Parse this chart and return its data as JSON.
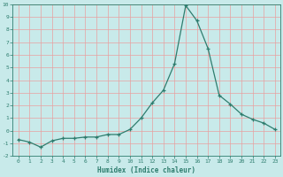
{
  "x": [
    0,
    1,
    2,
    3,
    4,
    5,
    6,
    7,
    8,
    9,
    10,
    11,
    12,
    13,
    14,
    15,
    16,
    17,
    18,
    19,
    20,
    21,
    22,
    23
  ],
  "y": [
    -0.7,
    -0.9,
    -1.3,
    -0.8,
    -0.6,
    -0.6,
    -0.5,
    -0.5,
    -0.3,
    -0.3,
    0.1,
    1.0,
    2.2,
    3.2,
    5.3,
    9.9,
    8.7,
    6.5,
    2.8,
    2.1,
    1.3,
    0.9,
    0.6,
    0.1
  ],
  "xlabel": "Humidex (Indice chaleur)",
  "ylim": [
    -2,
    10
  ],
  "xlim": [
    -0.5,
    23.5
  ],
  "line_color": "#2e7d6e",
  "marker": "+",
  "bg_color": "#c8eaea",
  "grid_color": "#e8a0a0",
  "tick_label_color": "#2e7d6e",
  "label_color": "#2e7d6e",
  "yticks": [
    -2,
    -1,
    0,
    1,
    2,
    3,
    4,
    5,
    6,
    7,
    8,
    9,
    10
  ],
  "xticks": [
    0,
    1,
    2,
    3,
    4,
    5,
    6,
    7,
    8,
    9,
    10,
    11,
    12,
    13,
    14,
    15,
    16,
    17,
    18,
    19,
    20,
    21,
    22,
    23
  ]
}
